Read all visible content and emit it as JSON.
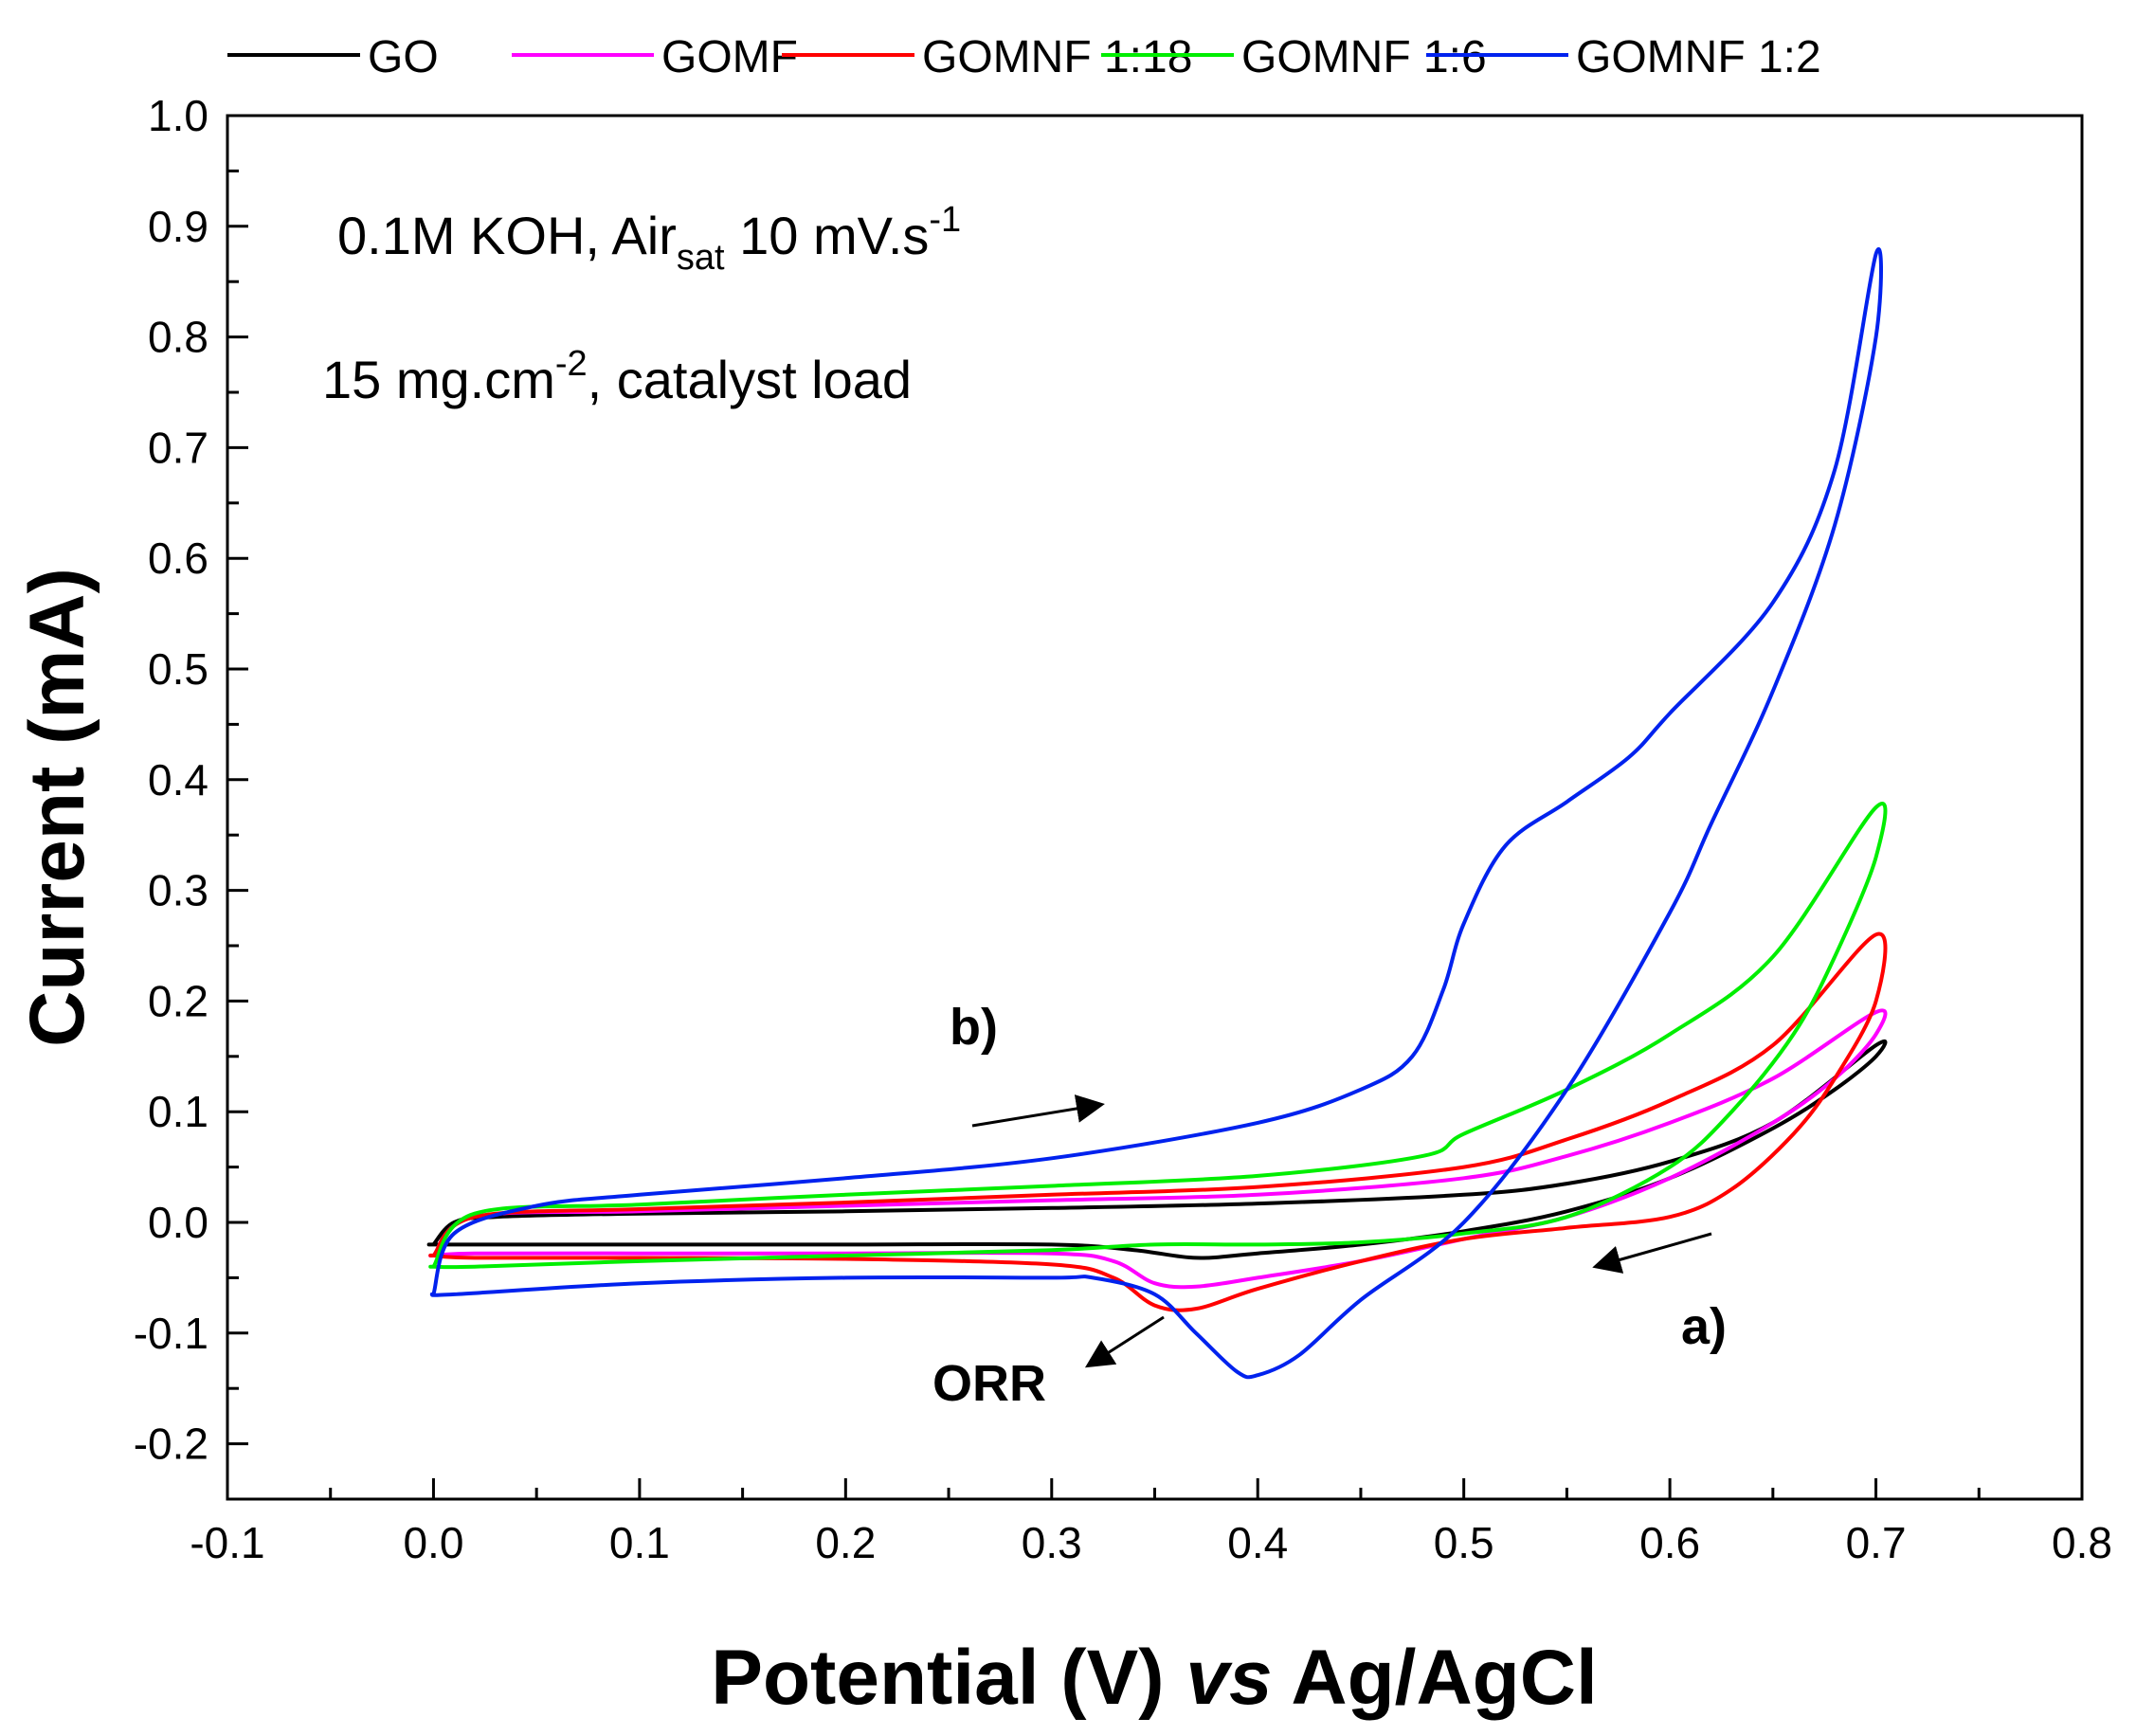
{
  "chart_data": {
    "type": "line",
    "title": "",
    "xlabel_main": "Potential (V) ",
    "xlabel_italic": "vs",
    "xlabel_tail": " Ag/AgCl",
    "ylabel": "Current (mA)",
    "xlim": [
      -0.1,
      0.8
    ],
    "ylim": [
      -0.25,
      1.0
    ],
    "x_ticks": [
      -0.1,
      0.0,
      0.1,
      0.2,
      0.3,
      0.4,
      0.5,
      0.6,
      0.7,
      0.8
    ],
    "x_tick_labels": [
      "-0.1",
      "0.0",
      "0.1",
      "0.2",
      "0.3",
      "0.4",
      "0.5",
      "0.6",
      "0.7",
      "0.8"
    ],
    "y_ticks": [
      -0.2,
      -0.1,
      0.0,
      0.1,
      0.2,
      0.3,
      0.4,
      0.5,
      0.6,
      0.7,
      0.8,
      0.9,
      1.0
    ],
    "y_tick_labels": [
      "-0.2",
      "-0.1",
      "0.0",
      "0.1",
      "0.2",
      "0.3",
      "0.4",
      "0.5",
      "0.6",
      "0.7",
      "0.8",
      "0.9",
      "1.0"
    ],
    "legend_position": "top",
    "grid": false,
    "series": [
      {
        "name": "GO",
        "color": "#000000",
        "x": [
          0.0,
          0.01,
          0.03,
          0.1,
          0.2,
          0.3,
          0.4,
          0.5,
          0.55,
          0.6,
          0.65,
          0.7,
          0.7,
          0.68,
          0.65,
          0.6,
          0.55,
          0.5,
          0.45,
          0.4,
          0.37,
          0.34,
          0.3,
          0.2,
          0.1,
          0.03,
          0.0
        ],
        "y": [
          -0.02,
          0.0,
          0.005,
          0.008,
          0.01,
          0.013,
          0.017,
          0.025,
          0.035,
          0.055,
          0.09,
          0.16,
          0.15,
          0.12,
          0.085,
          0.04,
          0.01,
          -0.008,
          -0.02,
          -0.028,
          -0.032,
          -0.025,
          -0.02,
          -0.02,
          -0.02,
          -0.02,
          -0.02
        ]
      },
      {
        "name": "GOMF",
        "color": "#ff00ff",
        "x": [
          0.0,
          0.02,
          0.1,
          0.2,
          0.3,
          0.4,
          0.5,
          0.55,
          0.6,
          0.65,
          0.7,
          0.7,
          0.68,
          0.65,
          0.6,
          0.55,
          0.5,
          0.45,
          0.4,
          0.37,
          0.35,
          0.33,
          0.3,
          0.2,
          0.1,
          0.02,
          0.0
        ],
        "y": [
          -0.03,
          0.005,
          0.01,
          0.015,
          0.02,
          0.025,
          0.04,
          0.06,
          0.09,
          0.13,
          0.19,
          0.17,
          0.13,
          0.09,
          0.04,
          0.005,
          -0.015,
          -0.035,
          -0.05,
          -0.058,
          -0.055,
          -0.035,
          -0.028,
          -0.028,
          -0.028,
          -0.028,
          -0.03
        ]
      },
      {
        "name": "GOMNF 1:18",
        "color": "#ff0000",
        "x": [
          0.0,
          0.02,
          0.1,
          0.2,
          0.3,
          0.4,
          0.5,
          0.55,
          0.6,
          0.65,
          0.7,
          0.7,
          0.68,
          0.66,
          0.63,
          0.6,
          0.55,
          0.5,
          0.45,
          0.4,
          0.37,
          0.35,
          0.33,
          0.3,
          0.2,
          0.1,
          0.02,
          0.0
        ],
        "y": [
          -0.03,
          0.005,
          0.012,
          0.018,
          0.025,
          0.032,
          0.05,
          0.075,
          0.11,
          0.16,
          0.26,
          0.2,
          0.13,
          0.08,
          0.03,
          0.005,
          -0.005,
          -0.015,
          -0.035,
          -0.06,
          -0.078,
          -0.075,
          -0.05,
          -0.038,
          -0.033,
          -0.032,
          -0.032,
          -0.03
        ]
      },
      {
        "name": "GOMNF 1:6",
        "color": "#00ee00",
        "x": [
          0.0,
          0.02,
          0.1,
          0.2,
          0.3,
          0.4,
          0.48,
          0.5,
          0.55,
          0.6,
          0.65,
          0.7,
          0.7,
          0.68,
          0.66,
          0.63,
          0.6,
          0.55,
          0.5,
          0.45,
          0.4,
          0.35,
          0.3,
          0.2,
          0.1,
          0.02,
          0.0
        ],
        "y": [
          -0.04,
          0.008,
          0.016,
          0.025,
          0.033,
          0.042,
          0.06,
          0.08,
          0.12,
          0.17,
          0.24,
          0.375,
          0.33,
          0.24,
          0.17,
          0.1,
          0.05,
          0.005,
          -0.01,
          -0.018,
          -0.02,
          -0.02,
          -0.025,
          -0.03,
          -0.035,
          -0.04,
          -0.04
        ]
      },
      {
        "name": "GOMNF 1:2",
        "color": "#0022ee",
        "x": [
          0.0,
          0.01,
          0.05,
          0.1,
          0.2,
          0.3,
          0.4,
          0.45,
          0.475,
          0.49,
          0.5,
          0.52,
          0.55,
          0.58,
          0.6,
          0.65,
          0.68,
          0.7,
          0.7,
          0.68,
          0.65,
          0.62,
          0.6,
          0.55,
          0.5,
          0.45,
          0.42,
          0.4,
          0.39,
          0.37,
          0.35,
          0.32,
          0.3,
          0.2,
          0.1,
          0.01,
          0.0
        ],
        "y": [
          -0.065,
          -0.01,
          0.015,
          0.025,
          0.04,
          0.058,
          0.09,
          0.12,
          0.15,
          0.21,
          0.27,
          0.34,
          0.38,
          0.42,
          0.46,
          0.56,
          0.68,
          0.875,
          0.8,
          0.63,
          0.48,
          0.36,
          0.28,
          0.12,
          0.0,
          -0.07,
          -0.12,
          -0.138,
          -0.135,
          -0.1,
          -0.065,
          -0.05,
          -0.05,
          -0.05,
          -0.055,
          -0.065,
          -0.065
        ]
      }
    ]
  },
  "annotations": {
    "conditions_main": "0.1M KOH, Air",
    "conditions_sub": "sat",
    "conditions_rate": " 10 mV.s",
    "conditions_sup": "-1",
    "load_main": "15 mg.cm",
    "load_sup": "-2",
    "load_tail": ", catalyst load",
    "label_a": "a)",
    "label_b": "b)",
    "label_orr": "ORR"
  }
}
